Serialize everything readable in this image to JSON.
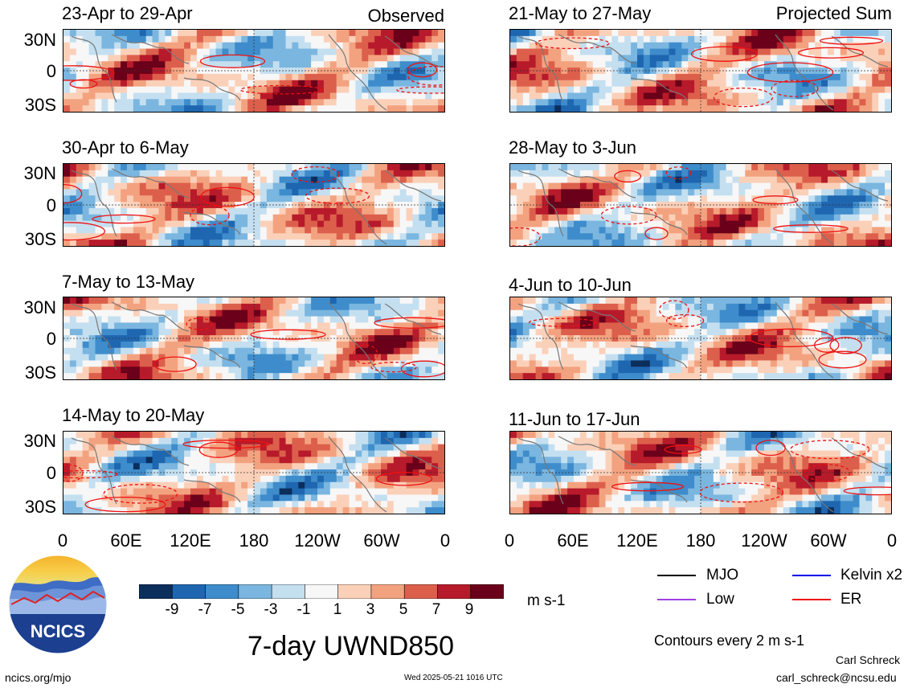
{
  "chart_data": {
    "type": "heatmap",
    "title": "7-day UWND850",
    "columns": [
      {
        "label": "Observed",
        "panels": [
          "23-Apr to 29-Apr",
          "30-Apr to 6-May",
          "7-May to 13-May",
          "14-May to 20-May"
        ]
      },
      {
        "label": "Projected Sum",
        "panels": [
          "21-May to 27-May",
          "28-May to 3-Jun",
          "4-Jun to 10-Jun",
          "11-Jun to 17-Jun"
        ]
      }
    ],
    "y_ticks": [
      "30N",
      "0",
      "30S"
    ],
    "x_ticks": [
      "0",
      "60E",
      "120E",
      "180",
      "120W",
      "60W",
      "0"
    ],
    "colorbar": {
      "labels": [
        "-9",
        "-7",
        "-5",
        "-3",
        "-1",
        "1",
        "3",
        "5",
        "7",
        "9"
      ],
      "units": "m s-1",
      "colors": [
        "#0b2e5c",
        "#1f66b0",
        "#3e8ccb",
        "#7ab6df",
        "#c4dff0",
        "#f7f7f7",
        "#fbd0b9",
        "#f3a27f",
        "#dc5f4c",
        "#b71a2a",
        "#6a0019"
      ]
    },
    "legend": [
      {
        "label": "MJO",
        "color": "#000000"
      },
      {
        "label": "Kelvin x2",
        "color": "#0000ee"
      },
      {
        "label": "Low",
        "color": "#a040e0"
      },
      {
        "label": "ER",
        "color": "#ee1111"
      }
    ],
    "contour_note": "Contours every 2 m s-1"
  },
  "footer": {
    "logo_text": "NCICS",
    "url": "ncics.org/mjo",
    "timestamp": "Wed 2025-05-21 1016 UTC",
    "author": "Carl Schreck",
    "email": "carl_schreck@ncsu.edu"
  }
}
